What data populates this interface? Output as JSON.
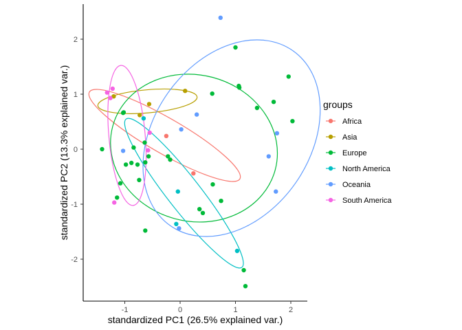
{
  "chart_data": {
    "type": "scatter",
    "xlabel": "standardized PC1 (26.5% explained var.)",
    "ylabel": "standardized PC2 (13.3% explained var.)",
    "xlim": [
      -1.75,
      2.3
    ],
    "ylim": [
      -2.75,
      2.5
    ],
    "x_ticks": [
      -1,
      0,
      1,
      2
    ],
    "y_ticks": [
      -2,
      -1,
      0,
      1,
      2
    ],
    "x_tick_labels": [
      "-1",
      "0",
      "1",
      "2"
    ],
    "y_tick_labels": [
      "-2",
      "-1",
      "0",
      "1",
      "2"
    ],
    "grid": false,
    "legend": {
      "title": "groups",
      "position": "right"
    },
    "series": [
      {
        "name": "Africa",
        "color": "#F8766D",
        "points": [
          [
            -0.25,
            0.24
          ],
          [
            0.24,
            -0.44
          ]
        ],
        "ellipse": {
          "center": [
            -0.28,
            0.25
          ],
          "rx": 1.57,
          "ry": 0.32,
          "angle_deg": -30
        }
      },
      {
        "name": "Asia",
        "color": "#B79F00",
        "points": [
          [
            -1.2,
            0.96
          ],
          [
            -0.56,
            0.82
          ],
          [
            0.09,
            1.06
          ],
          [
            -0.73,
            0.62
          ]
        ],
        "ellipse": {
          "center": [
            -0.59,
            0.87
          ],
          "rx": 0.9,
          "ry": 0.21,
          "angle_deg": 5
        }
      },
      {
        "name": "Europe",
        "color": "#00BA38",
        "points": [
          [
            -1.41,
            0.0
          ],
          [
            -1.03,
            0.66
          ],
          [
            -1.02,
            0.67
          ],
          [
            -0.98,
            -0.28
          ],
          [
            -0.88,
            -0.25
          ],
          [
            -0.84,
            0.03
          ],
          [
            -0.77,
            -0.28
          ],
          [
            -0.74,
            -0.56
          ],
          [
            -0.64,
            0.12
          ],
          [
            -0.63,
            -0.24
          ],
          [
            -0.57,
            -0.13
          ],
          [
            -0.63,
            -1.48
          ],
          [
            -0.22,
            -0.13
          ],
          [
            -0.18,
            -0.19
          ],
          [
            -1.08,
            -0.62
          ],
          [
            -1.14,
            -0.88
          ],
          [
            0.35,
            -1.09
          ],
          [
            0.41,
            -1.16
          ],
          [
            0.59,
            -0.64
          ],
          [
            0.58,
            1.01
          ],
          [
            0.74,
            -0.94
          ],
          [
            1.0,
            1.85
          ],
          [
            1.06,
            1.15
          ],
          [
            1.07,
            1.12
          ],
          [
            1.39,
            0.75
          ],
          [
            1.69,
            0.86
          ],
          [
            1.96,
            1.32
          ],
          [
            2.03,
            0.51
          ],
          [
            1.15,
            -2.2
          ],
          [
            1.18,
            -2.49
          ]
        ],
        "ellipse": {
          "center": [
            0.25,
            0.02
          ],
          "rx": 1.52,
          "ry": 1.33,
          "angle_deg": -15
        }
      },
      {
        "name": "North America",
        "color": "#00BFC4",
        "points": [
          [
            -0.66,
            0.56
          ],
          [
            -0.04,
            -0.77
          ],
          [
            -0.07,
            -1.36
          ],
          [
            1.03,
            -1.85
          ]
        ],
        "ellipse": {
          "center": [
            0.07,
            -0.8
          ],
          "rx": 1.7,
          "ry": 0.3,
          "angle_deg": -52
        }
      },
      {
        "name": "Oceania",
        "color": "#619CFF",
        "points": [
          [
            0.73,
            2.39
          ],
          [
            0.3,
            0.63
          ],
          [
            0.02,
            0.36
          ],
          [
            -1.03,
            -0.03
          ],
          [
            -0.02,
            -1.44
          ],
          [
            1.6,
            -0.13
          ],
          [
            1.73,
            -0.77
          ],
          [
            1.75,
            0.29
          ]
        ],
        "ellipse": {
          "center": [
            0.93,
            0.2
          ],
          "rx": 1.93,
          "ry": 1.42,
          "angle_deg": 55
        }
      },
      {
        "name": "South America",
        "color": "#F564E3",
        "points": [
          [
            -1.32,
            1.03
          ],
          [
            -1.26,
            0.93
          ],
          [
            -1.22,
            1.1
          ],
          [
            -1.19,
            -0.97
          ],
          [
            -0.55,
            0.3
          ],
          [
            -0.58,
            -0.02
          ]
        ],
        "ellipse": {
          "center": [
            -0.96,
            0.25
          ],
          "rx": 1.27,
          "ry": 0.33,
          "angle_deg": 95
        }
      }
    ]
  }
}
